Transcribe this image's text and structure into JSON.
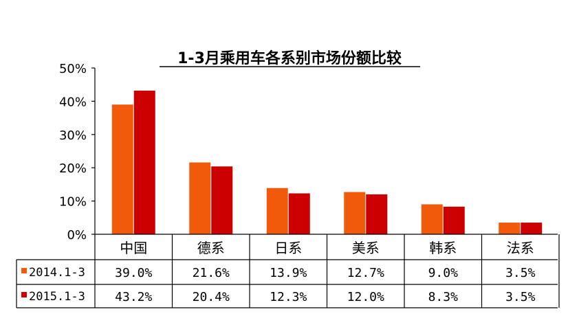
{
  "chart_data": {
    "type": "bar",
    "title": "1-3月乘用车各系别市场份额比较",
    "categories": [
      "中国",
      "德系",
      "日系",
      "美系",
      "韩系",
      "法系"
    ],
    "series": [
      {
        "name": "2014.1-3",
        "color": "#f05a0a",
        "values": [
          39.0,
          21.6,
          13.9,
          12.7,
          9.0,
          3.5
        ],
        "labels": [
          "39.0%",
          "21.6%",
          "13.9%",
          "12.7%",
          "9.0%",
          "3.5%"
        ]
      },
      {
        "name": "2015.1-3",
        "color": "#cc0000",
        "values": [
          43.2,
          20.4,
          12.3,
          12.0,
          8.3,
          3.5
        ],
        "labels": [
          "43.2%",
          "20.4%",
          "12.3%",
          "12.0%",
          "8.3%",
          "3.5%"
        ]
      }
    ],
    "yticks": [
      "0%",
      "10%",
      "20%",
      "30%",
      "40%",
      "50%"
    ],
    "ylim": [
      0,
      50
    ],
    "grid": false,
    "legend": "data-table"
  }
}
